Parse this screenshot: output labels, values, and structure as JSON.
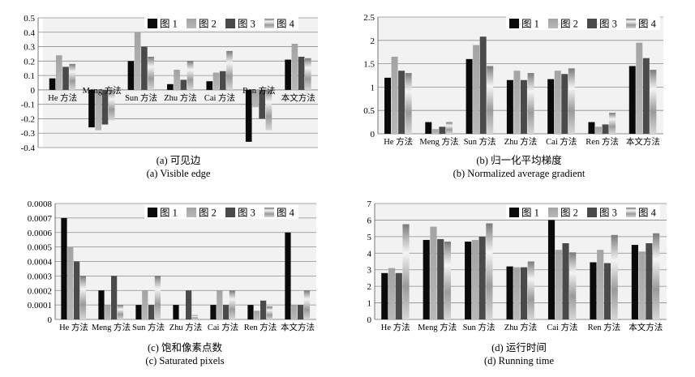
{
  "colors": {
    "series": [
      "#0a0a0a",
      "#a8a8a8",
      "#4a4a4a",
      "#c8c8c8"
    ],
    "plot_bg": "#f2f2f2",
    "grid": "#8c8c8c"
  },
  "chart_data": [
    {
      "type": "bar",
      "caption_cn": "(a) 可见边",
      "caption_en": "(a) Visible edge",
      "categories": [
        "He 方法",
        "Meng 方法",
        "Sun 方法",
        "Zhu 方法",
        "Cai 方法",
        "Ren 方法",
        "本文方法"
      ],
      "series": [
        {
          "name": "图 1",
          "values": [
            0.08,
            -0.26,
            0.2,
            0.04,
            0.06,
            -0.36,
            0.21
          ]
        },
        {
          "name": "图 2",
          "values": [
            0.24,
            -0.28,
            0.4,
            0.14,
            0.12,
            -0.12,
            0.32
          ]
        },
        {
          "name": "图 3",
          "values": [
            0.16,
            -0.24,
            0.3,
            0.07,
            0.13,
            -0.2,
            0.23
          ]
        },
        {
          "name": "图 4",
          "values": [
            0.18,
            -0.21,
            0.23,
            0.2,
            0.27,
            -0.28,
            0.22
          ]
        }
      ],
      "yticks": [
        "0.5",
        "0.4",
        "0.3",
        "0.2",
        "0.1",
        "0",
        "-0.1",
        "-0.2",
        "-0.3",
        "-0.4"
      ],
      "ylim": [
        -0.4,
        0.5
      ],
      "legend": "top-right",
      "grid": true
    },
    {
      "type": "bar",
      "caption_cn": "(b) 归一化平均梯度",
      "caption_en": "(b) Normalized average gradient",
      "categories": [
        "He 方法",
        "Meng 方法",
        "Sun 方法",
        "Zhu 方法",
        "Cai 方法",
        "Ren 方法",
        "本文方法"
      ],
      "series": [
        {
          "name": "图 1",
          "values": [
            1.2,
            0.25,
            1.6,
            1.15,
            1.17,
            0.25,
            1.45
          ]
        },
        {
          "name": "图 2",
          "values": [
            1.65,
            0.1,
            1.9,
            1.35,
            1.35,
            0.15,
            1.95
          ]
        },
        {
          "name": "图 3",
          "values": [
            1.35,
            0.15,
            2.08,
            1.15,
            1.28,
            0.2,
            1.62
          ]
        },
        {
          "name": "图 4",
          "values": [
            1.3,
            0.25,
            1.45,
            1.3,
            1.4,
            0.45,
            1.37
          ]
        }
      ],
      "yticks": [
        "2.5",
        "2",
        "1.5",
        "1",
        "0.5",
        "0"
      ],
      "ylim": [
        0,
        2.5
      ],
      "legend": "top-right",
      "grid": true
    },
    {
      "type": "bar",
      "caption_cn": "(c) 饱和像素点数",
      "caption_en": "(c) Saturated pixels",
      "categories": [
        "He 方法",
        "Meng 方法",
        "Sun 方法",
        "Zhu 方法",
        "Cai 方法",
        "Ren 方法",
        "本文方法"
      ],
      "series": [
        {
          "name": "图 1",
          "values": [
            0.0007,
            0.0002,
            0.0001,
            0.0001,
            0.0001,
            0.0001,
            0.0006
          ]
        },
        {
          "name": "图 2",
          "values": [
            0.0005,
            0.0001,
            0.0002,
            0.0,
            0.0002,
            6e-05,
            0.0001
          ]
        },
        {
          "name": "图 3",
          "values": [
            0.0004,
            0.0003,
            0.0001,
            0.0002,
            0.0001,
            0.00013,
            0.0001
          ]
        },
        {
          "name": "图 4",
          "values": [
            0.0003,
            0.0001,
            0.0003,
            3e-05,
            0.0002,
            9e-05,
            0.0002
          ]
        }
      ],
      "yticks": [
        "0.0008",
        "0.0007",
        "0.0006",
        "0.0005",
        "0.0004",
        "0.0003",
        "0.0002",
        "0.0001",
        "0"
      ],
      "ylim": [
        0,
        0.0008
      ],
      "legend": "top-right",
      "grid": true
    },
    {
      "type": "bar",
      "caption_cn": "(d) 运行时间",
      "caption_en": "(d) Running time",
      "categories": [
        "He 方法",
        "Meng 方法",
        "Sun 方法",
        "Zhu 方法",
        "Cai 方法",
        "Ren 方法",
        "本文方法"
      ],
      "series": [
        {
          "name": "图 1",
          "values": [
            2.8,
            4.8,
            4.7,
            3.2,
            6.0,
            3.45,
            4.5
          ]
        },
        {
          "name": "图 2",
          "values": [
            3.1,
            5.6,
            4.8,
            3.15,
            4.2,
            4.2,
            4.1
          ]
        },
        {
          "name": "图 3",
          "values": [
            2.8,
            4.85,
            5.0,
            3.15,
            4.6,
            3.4,
            4.6
          ]
        },
        {
          "name": "图 4",
          "values": [
            5.75,
            4.7,
            5.8,
            3.5,
            4.05,
            5.1,
            5.2
          ]
        }
      ],
      "yticks": [
        "7",
        "6",
        "5",
        "4",
        "3",
        "2",
        "1",
        "0"
      ],
      "ylim": [
        0,
        7
      ],
      "legend": "top-right",
      "grid": true
    }
  ]
}
